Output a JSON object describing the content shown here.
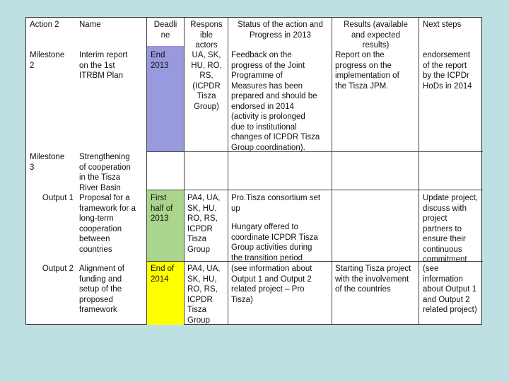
{
  "table": {
    "headers": {
      "action": "Action 2",
      "name": "Name",
      "deadline": "Deadli\nne",
      "actors": "Respons\nible\nactors",
      "status": "Status of the action and\nProgress in 2013",
      "results": "Results (available\nand expected\nresults)",
      "next": "Next steps"
    },
    "rows": [
      {
        "action": "Milestone\n2",
        "name": "Interim report\non the 1st\nITRBM Plan",
        "deadline": "End\n2013",
        "deadline_color": "#9999dd",
        "actors": "UA, SK,\nHU, RO,\nRS,\n(ICPDR\nTisza\nGroup)",
        "status": "Feedback on the\nprogress of the Joint\nProgramme of\nMeasures has been\nprepared and should be\nendorsed in 2014\n(activity is prolonged\ndue to institutional\nchanges of ICPDR Tisza\nGroup coordination).",
        "results": "Report on the\nprogress on the\nimplementation of\nthe Tisza JPM.",
        "next": "endorsement\nof the report\nby the ICPDr\nHoDs in 2014"
      },
      {
        "action": "Milestone\n3",
        "name": "Strengthening\nof cooperation\nin the Tisza\nRiver Basin",
        "deadline": "",
        "actors": "",
        "status": "",
        "results": "",
        "next": ""
      },
      {
        "action": "Output 1",
        "name": "Proposal for a\nframework for a\nlong-term\ncooperation\nbetween\ncountries",
        "deadline": "First\nhalf of\n2013",
        "deadline_color": "#aad58c",
        "actors": "PA4, UA,\nSK, HU,\nRO, RS,\nICPDR\nTisza\nGroup",
        "status_a": "Pro.Tisza consortium set\nup",
        "status_b": "Hungary offered to\ncoordinate ICPDR Tisza\nGroup activities during\nthe transition period",
        "results": "",
        "next": "Update project,\ndiscuss with\nproject\npartners to\nensure their\ncontinuous\ncommitment"
      },
      {
        "action": "Output 2",
        "name": "Alignment of\nfunding and\nsetup of the\nproposed\nframework",
        "deadline": "End of\n2014",
        "deadline_color": "#ffff00",
        "actors": "PA4, UA,\nSK, HU,\nRO, RS,\nICPDR\nTisza\nGroup",
        "status": "(see information about\nOutput 1 and Output 2\nrelated project – Pro\nTisza)",
        "results": "Starting Tisza project\nwith the involvement\nof the countries",
        "next": "(see\ninformation\nabout Output 1\nand Output 2\nrelated project)"
      }
    ]
  }
}
